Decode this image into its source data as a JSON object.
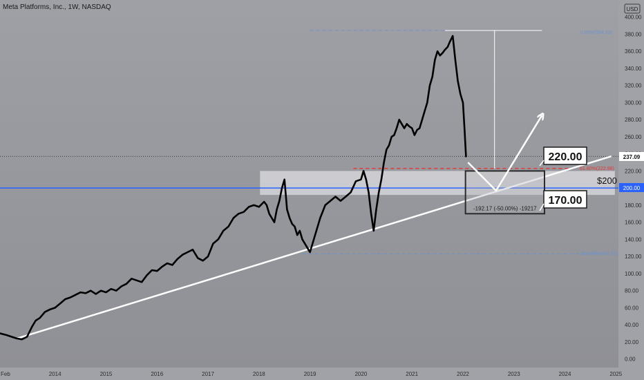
{
  "header": {
    "symbol_title": "Meta Platforms, Inc., 1W, NASDAQ",
    "currency": "USD"
  },
  "annotations": {
    "box_220": "220.00",
    "box_170": "170.00",
    "label_200": "$200",
    "fib_618": "61.80%(222.98)",
    "fib_0": "0.00%(384.33)",
    "fib_100": "100.00%(123.00)",
    "measure_text": "-192.17 (-50.00%) -19217"
  },
  "price_labels": {
    "last_price": "237.09",
    "blue_line": "200.00"
  },
  "colors": {
    "background_top": "#9ea0a6",
    "background_bottom": "#8f9096",
    "price_line": "#000000",
    "trend_line": "#ffffff",
    "blue_line": "#2962ff",
    "fib_red": "#e53935",
    "fib_blue": "#6e93c8",
    "zone_fill": "#d3d4d8"
  },
  "chart_data": {
    "type": "line",
    "title": "Meta Platforms, Inc., 1W, NASDAQ",
    "xlabel": "",
    "ylabel": "",
    "xlim": [
      2012.92,
      2025.05
    ],
    "ylim": [
      -10,
      420
    ],
    "grid": false,
    "x_ticks": [
      "Feb",
      "2014",
      "2015",
      "2016",
      "2017",
      "2018",
      "2019",
      "2020",
      "2021",
      "2022",
      "2023",
      "2024",
      "2025"
    ],
    "y_ticks": [
      "0.00",
      "20.00",
      "40.00",
      "60.00",
      "80.00",
      "100.00",
      "120.00",
      "140.00",
      "160.00",
      "180.00",
      "200.00",
      "220.00",
      "240.00",
      "260.00",
      "280.00",
      "300.00",
      "320.00",
      "340.00",
      "360.00",
      "380.00",
      "400.00"
    ],
    "series": [
      {
        "x": [
          2012.92,
          2013.05,
          2013.15,
          2013.25,
          2013.35,
          2013.45,
          2013.55,
          2013.62,
          2013.7,
          2013.8,
          2013.9,
          2014.0,
          2014.1,
          2014.2,
          2014.3,
          2014.4,
          2014.5,
          2014.6,
          2014.7,
          2014.8,
          2014.9,
          2015.0,
          2015.1,
          2015.2,
          2015.3,
          2015.4,
          2015.5,
          2015.6,
          2015.7,
          2015.8,
          2015.9,
          2016.0,
          2016.1,
          2016.2,
          2016.3,
          2016.4,
          2016.5,
          2016.6,
          2016.7,
          2016.8,
          2016.9,
          2017.0,
          2017.1,
          2017.2,
          2017.3,
          2017.4,
          2017.5,
          2017.6,
          2017.7,
          2017.8,
          2017.9,
          2018.0,
          2018.1,
          2018.15,
          2018.2,
          2018.25,
          2018.3,
          2018.35,
          2018.4,
          2018.45,
          2018.5,
          2018.55,
          2018.6,
          2018.65,
          2018.7,
          2018.75,
          2018.8,
          2018.85,
          2018.9,
          2018.95,
          2019.0,
          2019.1,
          2019.2,
          2019.3,
          2019.4,
          2019.5,
          2019.6,
          2019.7,
          2019.8,
          2019.9,
          2020.0,
          2020.05,
          2020.1,
          2020.15,
          2020.2,
          2020.25,
          2020.3,
          2020.35,
          2020.4,
          2020.45,
          2020.5,
          2020.55,
          2020.6,
          2020.65,
          2020.7,
          2020.75,
          2020.8,
          2020.85,
          2020.9,
          2020.95,
          2021.0,
          2021.05,
          2021.1,
          2021.15,
          2021.2,
          2021.25,
          2021.3,
          2021.35,
          2021.4,
          2021.45,
          2021.5,
          2021.55,
          2021.6,
          2021.65,
          2021.7,
          2021.75,
          2021.8,
          2021.85,
          2021.9,
          2021.95,
          2022.0,
          2022.03,
          2022.06
        ],
        "values": [
          30,
          28,
          26,
          24,
          23,
          26,
          38,
          45,
          48,
          55,
          58,
          60,
          65,
          70,
          72,
          75,
          78,
          77,
          80,
          76,
          80,
          78,
          82,
          80,
          85,
          88,
          94,
          92,
          90,
          98,
          104,
          103,
          108,
          112,
          110,
          117,
          122,
          125,
          128,
          118,
          115,
          120,
          135,
          140,
          150,
          155,
          165,
          170,
          172,
          178,
          180,
          178,
          184,
          180,
          170,
          165,
          160,
          175,
          185,
          200,
          210,
          175,
          165,
          158,
          155,
          145,
          150,
          140,
          135,
          130,
          125,
          145,
          165,
          180,
          185,
          190,
          185,
          190,
          195,
          208,
          210,
          220,
          210,
          195,
          170,
          150,
          175,
          195,
          210,
          230,
          245,
          250,
          260,
          262,
          270,
          280,
          275,
          270,
          275,
          272,
          270,
          262,
          268,
          270,
          280,
          290,
          300,
          320,
          330,
          350,
          360,
          355,
          358,
          362,
          365,
          372,
          378,
          350,
          325,
          310,
          300,
          270,
          237
        ]
      }
    ],
    "reference_lines": [
      {
        "name": "fib_0",
        "y": 384.33
      },
      {
        "name": "fib_618",
        "y": 222.98
      },
      {
        "name": "fib_100",
        "y": 123.0
      },
      {
        "name": "support",
        "y": 200.0
      }
    ],
    "trend_line": {
      "x": [
        2013.25,
        2024.9
      ],
      "y": [
        24,
        237
      ]
    },
    "zone": {
      "x": [
        2018.02,
        2024.98
      ],
      "y": [
        192,
        220
      ]
    },
    "measure_box": {
      "x": [
        2022.05,
        2023.6
      ],
      "y": [
        170,
        220
      ]
    },
    "projection": {
      "x": [
        2022.1,
        2022.65,
        2023.55
      ],
      "y": [
        230,
        197,
        285
      ]
    }
  }
}
